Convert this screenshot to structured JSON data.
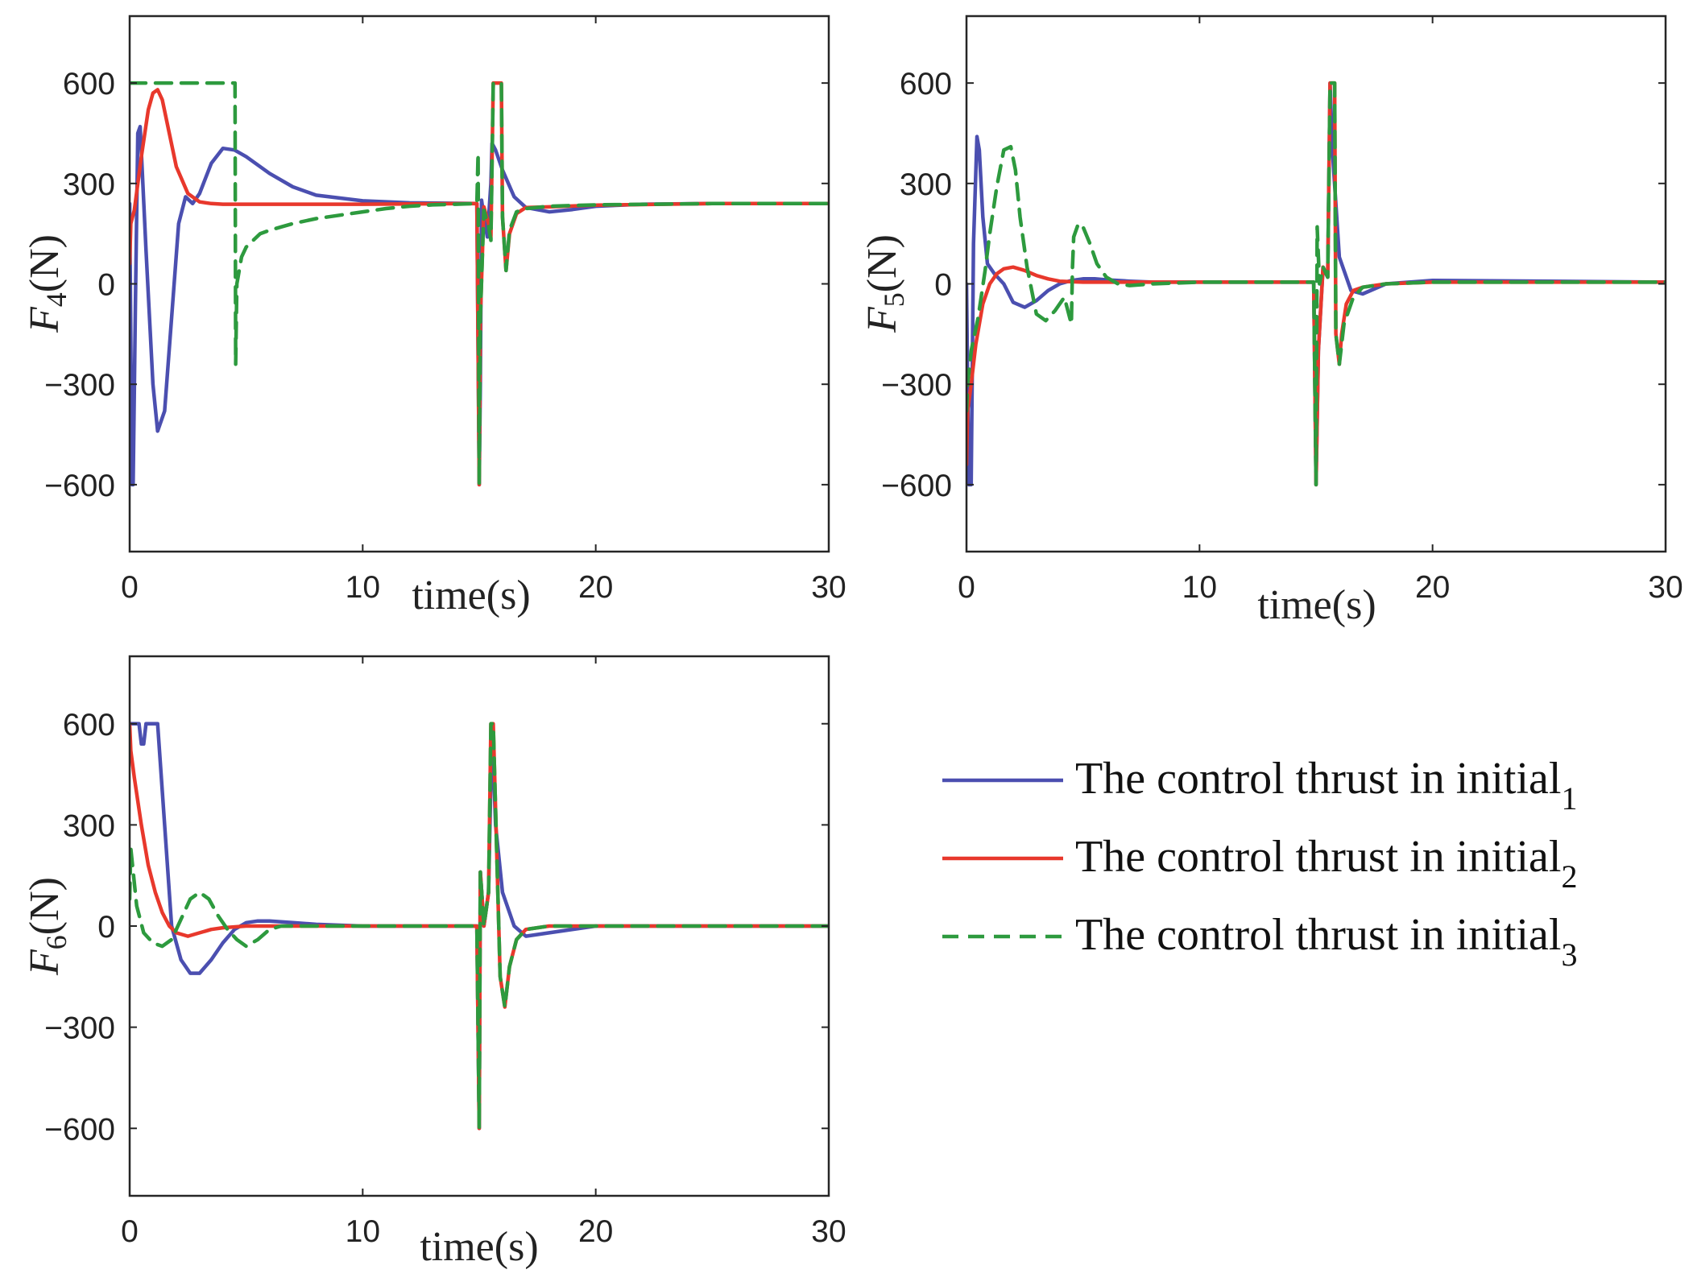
{
  "chart_data": [
    {
      "type": "line",
      "ylabel": "F",
      "ylabel_sub": "4",
      "ylabel_unit": "(N)",
      "xlabel": "time(s)",
      "xlim": [
        0,
        30
      ],
      "ylim": [
        -800,
        800
      ],
      "xticks": [
        "0",
        "10",
        "20",
        "30"
      ],
      "yticks": [
        "600",
        "300",
        "0",
        "−300",
        "−600"
      ],
      "series": [
        {
          "name": "The control thrust in initial1",
          "color": "#4b4fb0",
          "dash": "solid",
          "x": [
            0,
            0.1,
            0.15,
            0.25,
            0.35,
            0.45,
            0.7,
            1.0,
            1.2,
            1.5,
            1.8,
            2.1,
            2.4,
            2.7,
            3.0,
            3.5,
            4.0,
            4.5,
            5.0,
            6.0,
            7.0,
            8.0,
            10.0,
            12.0,
            14.9,
            15.0,
            15.05,
            15.1,
            15.2,
            15.35,
            15.5,
            15.55,
            15.7,
            16.0,
            16.5,
            17.0,
            18.0,
            19.0,
            20.0,
            22.0,
            25.0,
            30.0
          ],
          "y": [
            240,
            -600,
            -600,
            -50,
            450,
            470,
            100,
            -300,
            -440,
            -380,
            -100,
            180,
            260,
            240,
            270,
            360,
            405,
            400,
            380,
            330,
            290,
            265,
            248,
            242,
            240,
            -600,
            -300,
            250,
            200,
            140,
            300,
            420,
            400,
            340,
            260,
            228,
            215,
            222,
            232,
            238,
            240,
            240
          ]
        },
        {
          "name": "The control thrust in initial2",
          "color": "#e8382c",
          "dash": "solid",
          "x": [
            0,
            0.05,
            0.2,
            0.5,
            0.8,
            1.0,
            1.2,
            1.4,
            1.7,
            2.0,
            2.5,
            3.0,
            3.5,
            4.0,
            5.0,
            10.0,
            14.9,
            15.0,
            15.05,
            15.2,
            15.4,
            15.5,
            15.6,
            15.65,
            15.95,
            16.0,
            16.15,
            16.3,
            16.6,
            17.0,
            18.0,
            20.0,
            25.0,
            30.0
          ],
          "y": [
            60,
            180,
            220,
            380,
            520,
            570,
            580,
            550,
            450,
            350,
            270,
            245,
            240,
            238,
            238,
            238,
            240,
            -600,
            -100,
            230,
            180,
            140,
            600,
            600,
            600,
            200,
            40,
            150,
            210,
            228,
            230,
            235,
            240,
            240
          ]
        },
        {
          "name": "The control thrust in initial3",
          "color": "#2d9a3e",
          "dash": "dashed",
          "x": [
            0,
            4.5,
            4.52,
            4.55,
            4.6,
            4.8,
            5.0,
            5.3,
            5.6,
            6.0,
            6.5,
            7.0,
            8.0,
            9.0,
            10.0,
            11.0,
            12.0,
            13.0,
            14.0,
            14.9,
            14.95,
            15.0,
            15.05,
            15.2,
            15.4,
            15.5,
            15.6,
            15.65,
            15.95,
            16.0,
            16.15,
            16.3,
            16.6,
            17.0,
            18.0,
            20.0,
            25.0,
            30.0
          ],
          "y": [
            600,
            600,
            600,
            -240,
            0,
            80,
            110,
            130,
            150,
            160,
            170,
            180,
            195,
            205,
            215,
            225,
            232,
            236,
            238,
            240,
            390,
            -600,
            -100,
            220,
            170,
            130,
            600,
            600,
            600,
            200,
            40,
            160,
            215,
            225,
            232,
            236,
            240,
            240
          ]
        }
      ]
    },
    {
      "type": "line",
      "ylabel": "F",
      "ylabel_sub": "5",
      "ylabel_unit": "(N)",
      "xlabel": "time(s)",
      "xlim": [
        0,
        30
      ],
      "ylim": [
        -800,
        800
      ],
      "xticks": [
        "0",
        "10",
        "20",
        "30"
      ],
      "yticks": [
        "600",
        "300",
        "0",
        "−300",
        "−600"
      ],
      "series": [
        {
          "name": "The control thrust in initial1",
          "color": "#4b4fb0",
          "dash": "solid",
          "x": [
            0,
            0.1,
            0.2,
            0.3,
            0.45,
            0.55,
            0.7,
            0.9,
            1.2,
            1.6,
            2.0,
            2.5,
            3.0,
            3.5,
            4.0,
            4.5,
            5.0,
            5.5,
            6.0,
            7.0,
            8.0,
            10.0,
            14.9,
            15.0,
            15.1,
            15.3,
            15.5,
            15.6,
            15.7,
            16.0,
            16.5,
            17.0,
            18.0,
            20.0,
            25.0,
            30.0
          ],
          "y": [
            0,
            -600,
            -600,
            120,
            440,
            400,
            200,
            60,
            30,
            0,
            -55,
            -70,
            -50,
            -20,
            0,
            10,
            15,
            15,
            12,
            8,
            5,
            5,
            5,
            -600,
            -200,
            50,
            20,
            600,
            400,
            80,
            -20,
            -30,
            0,
            10,
            8,
            5
          ]
        },
        {
          "name": "The control thrust in initial2",
          "color": "#e8382c",
          "dash": "solid",
          "x": [
            0,
            0.05,
            0.2,
            0.4,
            0.7,
            1.0,
            1.3,
            1.6,
            2.0,
            2.5,
            3.0,
            3.5,
            4.0,
            5.0,
            7.0,
            10.0,
            14.9,
            15.0,
            15.1,
            15.3,
            15.5,
            15.6,
            15.65,
            15.8,
            15.85,
            16.0,
            16.1,
            16.3,
            16.6,
            17.0,
            18.0,
            20.0,
            25.0,
            30.0
          ],
          "y": [
            -540,
            -380,
            -300,
            -180,
            -60,
            0,
            30,
            45,
            50,
            40,
            25,
            15,
            8,
            5,
            5,
            5,
            5,
            -600,
            -200,
            50,
            20,
            600,
            600,
            600,
            -150,
            -240,
            -150,
            -60,
            -20,
            -10,
            0,
            5,
            5,
            5
          ]
        },
        {
          "name": "The control thrust in initial3",
          "color": "#2d9a3e",
          "dash": "dashed",
          "x": [
            0,
            0.05,
            0.2,
            0.5,
            0.8,
            1.0,
            1.3,
            1.6,
            1.9,
            2.1,
            2.3,
            2.6,
            3.0,
            3.4,
            3.8,
            4.2,
            4.5,
            4.55,
            4.6,
            4.8,
            5.0,
            5.3,
            5.6,
            6.0,
            6.5,
            7.0,
            8.0,
            10.0,
            14.9,
            15.0,
            15.05,
            15.15,
            15.3,
            15.5,
            15.6,
            15.65,
            15.8,
            15.85,
            16.0,
            16.2,
            16.6,
            17.0,
            18.0,
            20.0,
            25.0,
            30.0
          ],
          "y": [
            -380,
            -300,
            -200,
            -100,
            40,
            150,
            290,
            400,
            410,
            340,
            200,
            50,
            -90,
            -110,
            -80,
            -40,
            -120,
            50,
            140,
            180,
            170,
            120,
            60,
            20,
            0,
            -5,
            0,
            5,
            5,
            -600,
            170,
            0,
            50,
            20,
            600,
            600,
            600,
            -150,
            -240,
            -120,
            -40,
            -10,
            0,
            5,
            5,
            5
          ]
        }
      ]
    },
    {
      "type": "line",
      "ylabel": "F",
      "ylabel_sub": "6",
      "ylabel_unit": "(N)",
      "xlabel": "time(s)",
      "xlim": [
        0,
        30
      ],
      "ylim": [
        -800,
        800
      ],
      "xticks": [
        "0",
        "10",
        "20",
        "30"
      ],
      "yticks": [
        "600",
        "300",
        "0",
        "−300",
        "−600"
      ],
      "series": [
        {
          "name": "The control thrust in initial1",
          "color": "#4b4fb0",
          "dash": "solid",
          "x": [
            0,
            0.4,
            0.5,
            0.6,
            0.7,
            1.2,
            1.5,
            1.8,
            2.2,
            2.6,
            3.0,
            3.5,
            4.0,
            4.5,
            5.0,
            5.5,
            6.0,
            7.0,
            8.0,
            10.0,
            14.9,
            15.0,
            15.05,
            15.2,
            15.4,
            15.55,
            15.7,
            16.0,
            16.5,
            17.0,
            18.0,
            20.0,
            25.0,
            30.0
          ],
          "y": [
            600,
            600,
            540,
            540,
            600,
            600,
            300,
            0,
            -100,
            -140,
            -140,
            -100,
            -50,
            -10,
            10,
            15,
            15,
            10,
            5,
            0,
            0,
            -600,
            160,
            0,
            100,
            600,
            300,
            100,
            0,
            -30,
            -20,
            0,
            0,
            0
          ]
        },
        {
          "name": "The control thrust in initial2",
          "color": "#e8382c",
          "dash": "solid",
          "x": [
            0,
            0.05,
            0.2,
            0.5,
            0.8,
            1.1,
            1.4,
            1.7,
            2.0,
            2.5,
            3.0,
            3.5,
            4.0,
            5.0,
            7.0,
            10.0,
            14.9,
            15.0,
            15.05,
            15.2,
            15.4,
            15.5,
            15.6,
            15.8,
            15.9,
            16.1,
            16.3,
            16.6,
            17.0,
            18.0,
            20.0,
            25.0,
            30.0
          ],
          "y": [
            600,
            520,
            440,
            300,
            180,
            100,
            40,
            0,
            -20,
            -30,
            -20,
            -10,
            -5,
            0,
            0,
            0,
            0,
            -600,
            160,
            0,
            100,
            600,
            600,
            100,
            -150,
            -240,
            -120,
            -40,
            -10,
            0,
            0,
            0,
            0
          ]
        },
        {
          "name": "The control thrust in initial3",
          "color": "#2d9a3e",
          "dash": "dashed",
          "x": [
            0,
            0.05,
            0.3,
            0.6,
            1.0,
            1.4,
            1.8,
            2.2,
            2.6,
            3.0,
            3.4,
            3.8,
            4.2,
            4.6,
            5.0,
            5.5,
            6.0,
            6.5,
            7.0,
            8.0,
            10.0,
            14.9,
            15.0,
            15.05,
            15.2,
            15.4,
            15.5,
            15.6,
            15.8,
            15.9,
            16.1,
            16.3,
            16.6,
            17.0,
            18.0,
            20.0,
            25.0,
            30.0
          ],
          "y": [
            80,
            230,
            60,
            -20,
            -50,
            -60,
            -40,
            20,
            80,
            100,
            80,
            30,
            -10,
            -40,
            -60,
            -40,
            -10,
            0,
            0,
            0,
            0,
            0,
            -600,
            160,
            0,
            100,
            600,
            600,
            100,
            -150,
            -240,
            -120,
            -40,
            -10,
            0,
            0,
            0,
            0
          ]
        }
      ]
    }
  ],
  "legend": {
    "items": [
      {
        "label": "The control thrust in initial",
        "sub": "1",
        "color": "#4b4fb0",
        "dash": "solid"
      },
      {
        "label": "The control thrust in initial",
        "sub": "2",
        "color": "#e8382c",
        "dash": "solid"
      },
      {
        "label": "The control thrust in initial",
        "sub": "3",
        "color": "#2d9a3e",
        "dash": "dashed"
      }
    ]
  }
}
